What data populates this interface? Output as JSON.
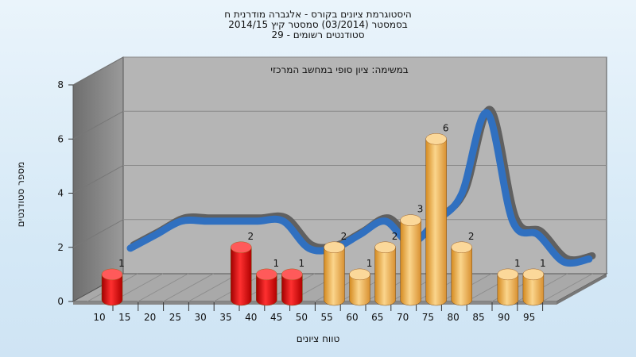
{
  "chart_data": {
    "type": "bar",
    "title_lines": [
      "היסטוגרמת ציונים בקורס - אלגברה מודרנית ח",
      "בסמסטר  (03/2014)  סמסטר קיץ 2014/15",
      "סטודנטים רשומים - 29"
    ],
    "annotation": "במשימה: ציון סופי במחשב המרכזי",
    "xlabel": "טווח ציונים",
    "ylabel": "מספר סטודנטים",
    "x_ticks": [
      "10",
      "15",
      "20",
      "25",
      "30",
      "35",
      "40",
      "45",
      "50",
      "55",
      "60",
      "65",
      "70",
      "75",
      "80",
      "85",
      "90",
      "95"
    ],
    "y_ticks": [
      "0",
      "2",
      "4",
      "6",
      "8"
    ],
    "ylim": [
      0,
      8
    ],
    "bars": [
      {
        "x": 10,
        "value": 1,
        "group": "fail"
      },
      {
        "x": 37.5,
        "value": 2,
        "group": "fail"
      },
      {
        "x": 42.5,
        "value": 1,
        "group": "fail"
      },
      {
        "x": 47.5,
        "value": 1,
        "group": "fail"
      },
      {
        "x": 57.5,
        "value": 2,
        "group": "pass"
      },
      {
        "x": 62.5,
        "value": 1,
        "group": "pass"
      },
      {
        "x": 67.5,
        "value": 2,
        "group": "pass"
      },
      {
        "x": 72.5,
        "value": 3,
        "group": "pass"
      },
      {
        "x": 77.5,
        "value": 6,
        "group": "pass"
      },
      {
        "x": 82.5,
        "value": 2,
        "group": "pass"
      },
      {
        "x": 92.5,
        "value": 1,
        "group": "pass"
      },
      {
        "x": 97.5,
        "value": 1,
        "group": "pass"
      }
    ],
    "trend": {
      "x": [
        10,
        15,
        20,
        25,
        30,
        35,
        40,
        45,
        50,
        55,
        60,
        65,
        70,
        75,
        80,
        85,
        90,
        95,
        100
      ],
      "values": [
        1.0,
        1.5,
        2.0,
        2.0,
        2.0,
        2.0,
        2.0,
        1.0,
        1.0,
        1.5,
        2.0,
        1.2,
        2.0,
        3.0,
        6.0,
        2.0,
        1.5,
        0.5,
        0.6
      ]
    },
    "colors": {
      "fail_bar": "#e01010",
      "pass_bar": "#f0b050",
      "trend_front": "#3070c0",
      "trend_back": "#606060",
      "wall": "#8c8c8c",
      "back_wall": "#b4b4b4",
      "floor": "#a8a8a8"
    },
    "grid": true
  }
}
